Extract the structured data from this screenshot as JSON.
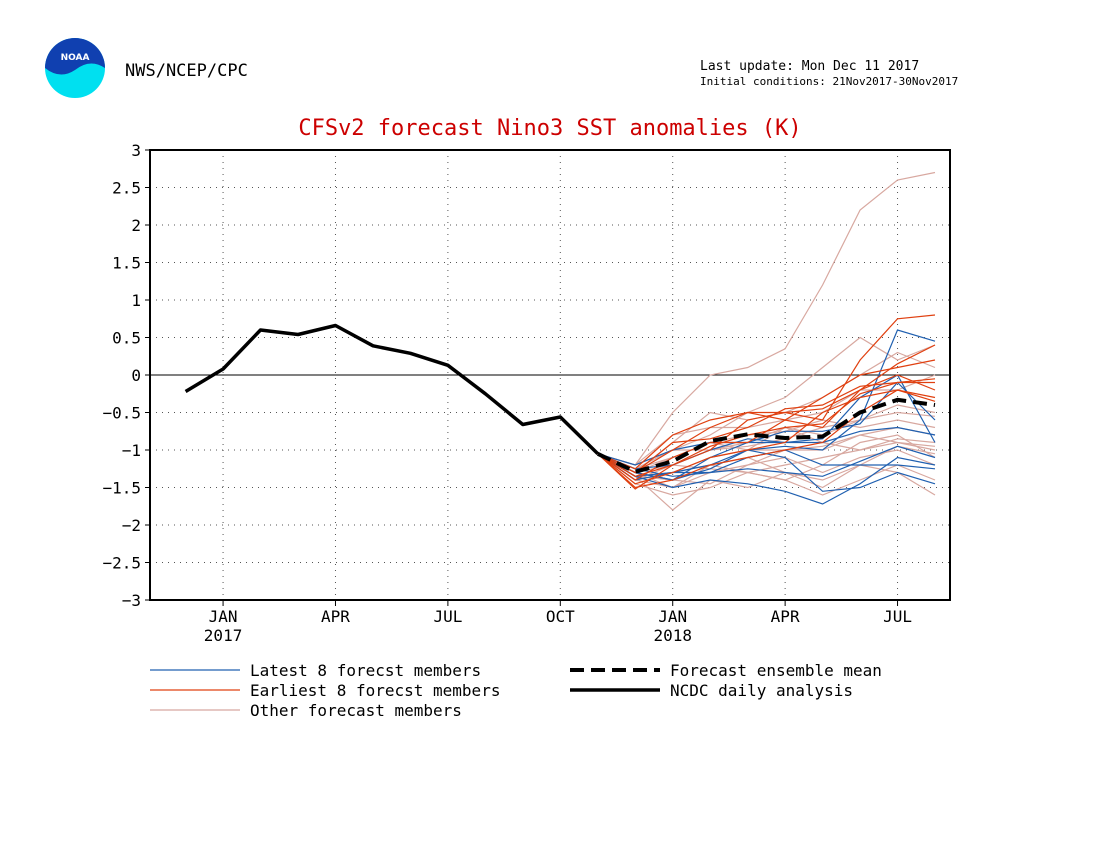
{
  "header": {
    "logo_text": "NOAA",
    "org": "NWS/NCEP/CPC",
    "last_update": "Last update: Mon Dec 11 2017",
    "initial_conditions": "Initial conditions: 21Nov2017-30Nov2017"
  },
  "colors": {
    "latest": "#2060b0",
    "earliest": "#e04010",
    "other": "#d8a8a0",
    "observed": "#000000",
    "title": "#cc0000",
    "logo_blue": "#1040b0",
    "logo_cyan": "#00e0f0"
  },
  "chart_data": {
    "type": "line",
    "title": "CFSv2 forecast Nino3 SST anomalies (K)",
    "ylim": [
      -3,
      3
    ],
    "yticks": [
      -3,
      -2.5,
      -2,
      -1.5,
      -1,
      -0.5,
      0,
      0.5,
      1,
      1.5,
      2,
      2.5,
      3
    ],
    "ytick_labels": [
      "−3",
      "−2.5",
      "−2",
      "−1.5",
      "−1",
      "−0.5",
      "0",
      "0.5",
      "1",
      "1.5",
      "2",
      "2.5",
      "3"
    ],
    "x_unit": "month",
    "x_start": "Dec 2016",
    "x_end": "Aug 2018",
    "xticks": [
      {
        "month": "Jan 2017",
        "label": "JAN",
        "year": "2017"
      },
      {
        "month": "Apr 2017",
        "label": "APR",
        "year": ""
      },
      {
        "month": "Jul 2017",
        "label": "JUL",
        "year": ""
      },
      {
        "month": "Oct 2017",
        "label": "OCT",
        "year": ""
      },
      {
        "month": "Jan 2018",
        "label": "JAN",
        "year": "2018"
      },
      {
        "month": "Apr 2018",
        "label": "APR",
        "year": ""
      },
      {
        "month": "Jul 2018",
        "label": "JUL",
        "year": ""
      }
    ],
    "grid": true,
    "zero_line": true,
    "legend": [
      {
        "label": "Latest 8 forecst members",
        "style": "latest"
      },
      {
        "label": "Earliest 8 forecst members",
        "style": "earliest"
      },
      {
        "label": "Other forecast members",
        "style": "other"
      },
      {
        "label": "Forecast ensemble mean",
        "style": "mean"
      },
      {
        "label": "NCDC daily analysis",
        "style": "observed"
      }
    ],
    "observed": {
      "name": "NCDC daily analysis",
      "x": [
        "Dec 2016",
        "Jan 2017",
        "Feb 2017",
        "Mar 2017",
        "Apr 2017",
        "May 2017",
        "Jun 2017",
        "Jul 2017",
        "Aug 2017",
        "Sep 2017",
        "Oct 2017",
        "Nov 2017"
      ],
      "y": [
        -0.22,
        0.08,
        0.6,
        0.54,
        0.66,
        0.39,
        0.29,
        0.13,
        -0.25,
        -0.66,
        -0.56,
        -1.05
      ]
    },
    "ensemble_mean": {
      "name": "Forecast ensemble mean",
      "x": [
        "Nov 2017",
        "Dec 2017",
        "Jan 2018",
        "Feb 2018",
        "Mar 2018",
        "Apr 2018",
        "May 2018",
        "Jun 2018",
        "Jul 2018",
        "Aug 2018"
      ],
      "y": [
        -1.05,
        -1.29,
        -1.15,
        -0.88,
        -0.79,
        -0.84,
        -0.82,
        -0.5,
        -0.33,
        -0.4
      ]
    },
    "members_x": [
      "Nov 2017",
      "Dec 2017",
      "Jan 2018",
      "Feb 2018",
      "Mar 2018",
      "Apr 2018",
      "May 2018",
      "Jun 2018",
      "Jul 2018",
      "Aug 2018"
    ],
    "latest_members": [
      [
        -1.05,
        -1.3,
        -1.4,
        -1.25,
        -1.0,
        -0.95,
        -1.0,
        -0.6,
        0.6,
        0.45
      ],
      [
        -1.05,
        -1.25,
        -1.2,
        -1.0,
        -0.85,
        -0.9,
        -0.85,
        -0.3,
        0.0,
        -0.9
      ],
      [
        -1.05,
        -1.35,
        -1.5,
        -1.4,
        -1.45,
        -1.55,
        -1.72,
        -1.45,
        -1.1,
        -1.2
      ],
      [
        -1.05,
        -1.2,
        -1.0,
        -0.9,
        -0.9,
        -0.75,
        -0.75,
        -0.65,
        -0.1,
        -0.6
      ],
      [
        -1.05,
        -1.4,
        -1.3,
        -1.2,
        -1.0,
        -1.1,
        -1.55,
        -1.5,
        -1.3,
        -1.45
      ],
      [
        -1.05,
        -1.25,
        -1.35,
        -1.3,
        -1.25,
        -1.3,
        -1.35,
        -1.15,
        -0.95,
        -1.1
      ],
      [
        -1.05,
        -1.3,
        -1.4,
        -1.1,
        -0.9,
        -0.9,
        -0.9,
        -0.75,
        -0.7,
        -0.8
      ],
      [
        -1.05,
        -1.35,
        -1.3,
        -1.3,
        -1.1,
        -1.0,
        -1.2,
        -1.2,
        -1.2,
        -1.25
      ]
    ],
    "earliest_members": [
      [
        -1.05,
        -1.52,
        -1.2,
        -1.0,
        -0.6,
        -0.5,
        -0.6,
        0.2,
        0.75,
        0.8
      ],
      [
        -1.05,
        -1.3,
        -1.0,
        -0.7,
        -0.5,
        -0.5,
        -0.45,
        -0.2,
        0.15,
        0.4
      ],
      [
        -1.05,
        -1.45,
        -1.3,
        -1.1,
        -1.0,
        -0.9,
        -0.5,
        -0.3,
        -0.2,
        -0.35
      ],
      [
        -1.05,
        -1.25,
        -0.8,
        -0.6,
        -0.5,
        -0.6,
        -0.3,
        0.0,
        0.1,
        0.2
      ],
      [
        -1.05,
        -1.4,
        -1.1,
        -0.9,
        -0.9,
        -0.6,
        -0.7,
        -0.2,
        0.0,
        -0.2
      ],
      [
        -1.05,
        -1.35,
        -1.2,
        -0.95,
        -0.8,
        -0.7,
        -0.65,
        -0.25,
        -0.1,
        -0.05
      ],
      [
        -1.05,
        -1.5,
        -1.4,
        -1.2,
        -1.1,
        -1.0,
        -0.9,
        -0.5,
        -0.2,
        -0.3
      ],
      [
        -1.05,
        -1.3,
        -0.9,
        -0.85,
        -0.7,
        -0.45,
        -0.4,
        -0.15,
        -0.1,
        -0.1
      ]
    ],
    "other_members": [
      [
        -1.05,
        -1.2,
        -0.5,
        0.0,
        0.1,
        0.35,
        1.2,
        2.2,
        2.6,
        2.7
      ],
      [
        -1.05,
        -1.35,
        -1.8,
        -1.4,
        -1.5,
        -1.3,
        -1.5,
        -1.2,
        -1.3,
        -1.6
      ],
      [
        -1.05,
        -1.2,
        -1.0,
        -0.8,
        -0.5,
        -0.3,
        0.1,
        0.5,
        0.2,
        0.4
      ],
      [
        -1.05,
        -1.4,
        -1.3,
        -1.1,
        -1.0,
        -0.7,
        -0.9,
        -1.0,
        -0.9,
        -1.0
      ],
      [
        -1.05,
        -1.3,
        -1.5,
        -1.3,
        -1.2,
        -1.1,
        -1.3,
        -1.1,
        -1.0,
        -1.2
      ],
      [
        -1.05,
        -1.25,
        -1.1,
        -0.9,
        -0.8,
        -0.75,
        -0.6,
        -0.7,
        -0.6,
        -0.7
      ],
      [
        -1.05,
        -1.4,
        -1.2,
        -1.25,
        -1.3,
        -1.4,
        -1.2,
        -0.9,
        -0.8,
        -1.1
      ],
      [
        -1.05,
        -1.3,
        -0.9,
        -0.5,
        -0.6,
        -0.5,
        -0.3,
        0.0,
        0.3,
        0.1
      ],
      [
        -1.05,
        -1.35,
        -1.4,
        -1.45,
        -1.2,
        -1.0,
        -1.0,
        -0.8,
        -0.9,
        -0.95
      ],
      [
        -1.05,
        -1.25,
        -1.0,
        -1.0,
        -0.9,
        -0.7,
        -0.8,
        -0.6,
        -0.4,
        -0.5
      ],
      [
        -1.05,
        -1.45,
        -1.6,
        -1.5,
        -1.3,
        -1.4,
        -1.6,
        -1.4,
        -1.2,
        -1.4
      ],
      [
        -1.05,
        -1.3,
        -1.2,
        -1.0,
        -0.95,
        -0.85,
        -0.7,
        -0.6,
        -0.5,
        -0.55
      ],
      [
        -1.05,
        -1.2,
        -0.8,
        -0.7,
        -0.7,
        -0.6,
        -0.5,
        -0.2,
        -0.2,
        0.0
      ],
      [
        -1.05,
        -1.35,
        -1.3,
        -1.2,
        -1.3,
        -1.2,
        -1.1,
        -1.0,
        -0.85,
        -0.9
      ],
      [
        -1.05,
        -1.3,
        -1.1,
        -0.9,
        -1.0,
        -1.0,
        -0.95,
        -0.8,
        -0.7,
        -0.8
      ],
      [
        -1.05,
        -1.4,
        -1.5,
        -1.2,
        -1.1,
        -1.3,
        -1.4,
        -1.2,
        -0.95,
        -1.05
      ]
    ]
  }
}
